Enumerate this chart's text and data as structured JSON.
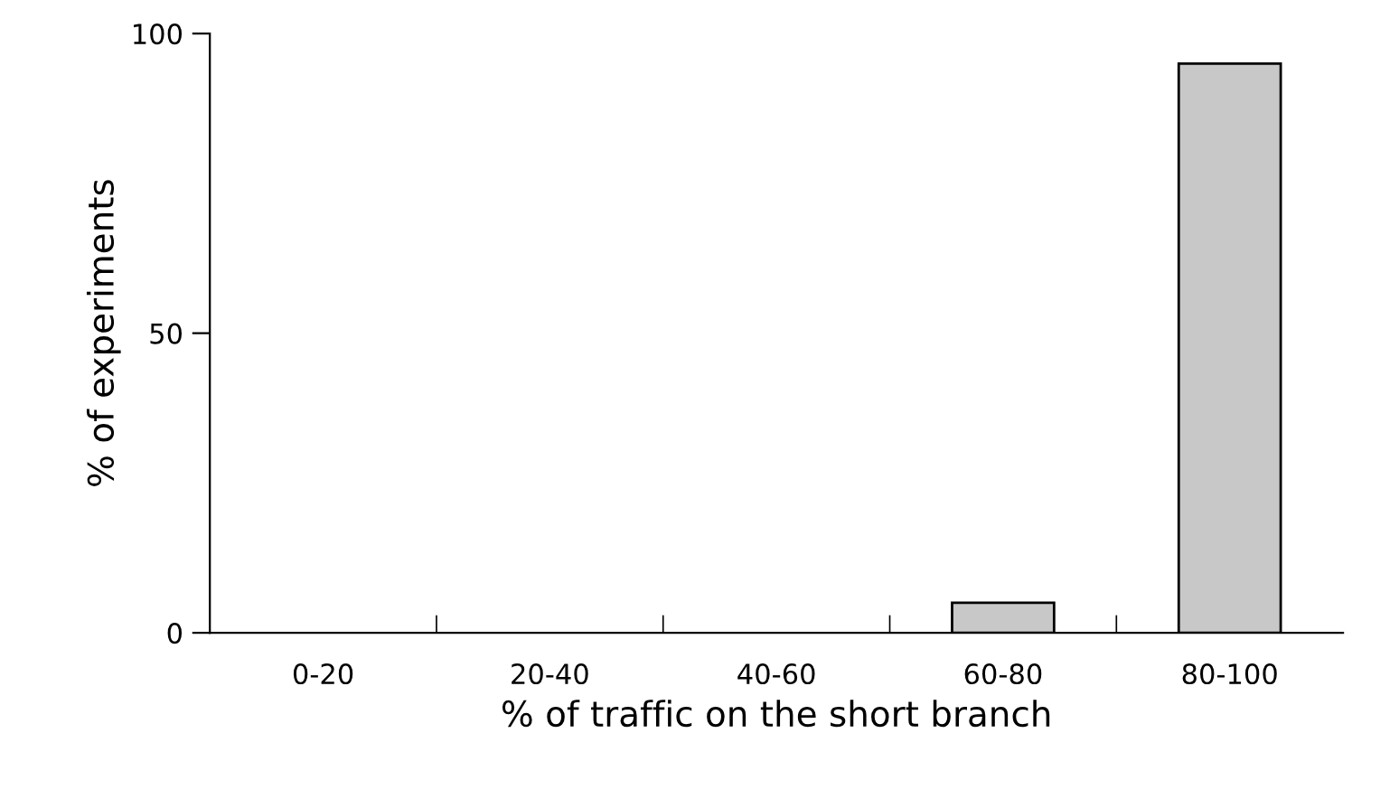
{
  "chart_data": {
    "type": "bar",
    "xlabel": "% of traffic on the short branch",
    "ylabel": "% of experiments",
    "categories": [
      "0-20",
      "20-40",
      "40-60",
      "60-80",
      "80-100"
    ],
    "values": [
      0,
      0,
      0,
      5,
      95
    ],
    "color": "#c8c8c8",
    "ylim": [
      0,
      100
    ],
    "yticks": [
      0,
      50,
      100
    ],
    "grid": false
  }
}
